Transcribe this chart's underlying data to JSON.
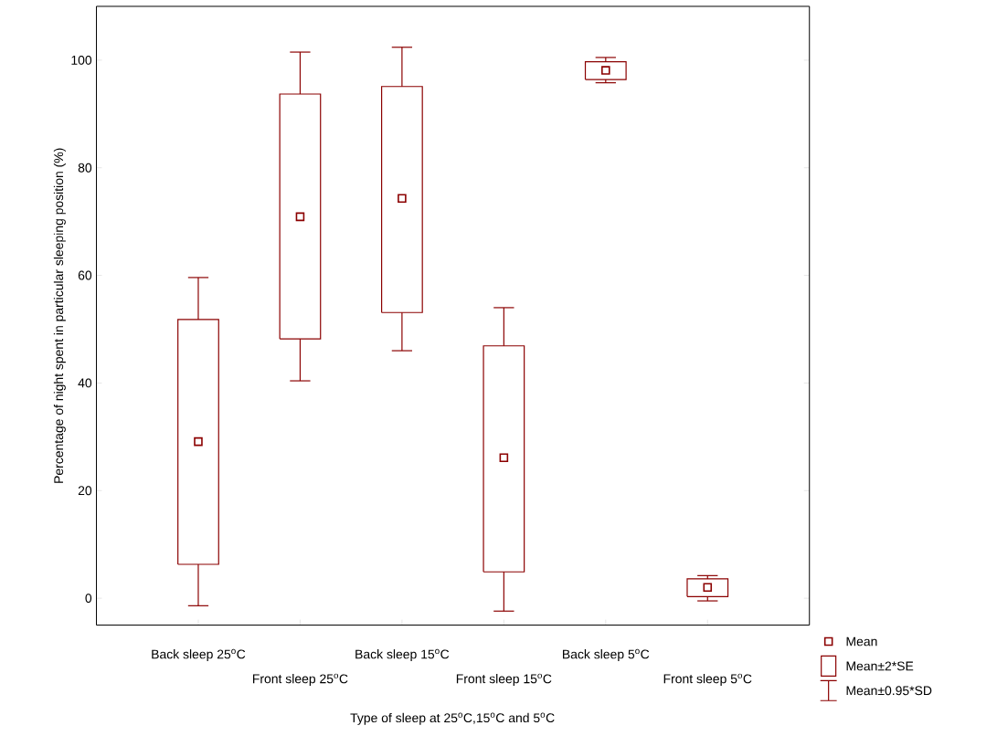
{
  "chart_data": {
    "type": "box",
    "xlabel": "Type of sleep at 25$^{o}$C,15$^{o}$C and 5$^{o}$C",
    "ylabel": "Percentage of night spent in particular sleeping position (%)",
    "categories": [
      "Back sleep 25$^{o}$C",
      "Front sleep 25$^{o}$C",
      "Back sleep 15$^{o}$C",
      "Front sleep 15$^{o}$C",
      "Back sleep 5$^{o}$C",
      "Front sleep 5$^{o}$C"
    ],
    "series": [
      {
        "color": "#8b0000",
        "boxes": [
          {
            "low": -1.4,
            "q1": 6.3,
            "median": 29.1,
            "q3": 51.8,
            "high": 59.6
          },
          {
            "low": 40.4,
            "q1": 48.2,
            "median": 70.9,
            "q3": 93.7,
            "high": 101.5
          },
          {
            "low": 46.0,
            "q1": 53.1,
            "median": 74.3,
            "q3": 95.1,
            "high": 102.4
          },
          {
            "low": -2.4,
            "q1": 4.9,
            "median": 26.1,
            "q3": 46.9,
            "high": 54.0
          },
          {
            "low": 95.8,
            "q1": 96.4,
            "median": 98.1,
            "q3": 99.7,
            "high": 100.5
          },
          {
            "low": -0.5,
            "q1": 0.3,
            "median": 2.0,
            "q3": 3.6,
            "high": 4.2
          }
        ]
      }
    ],
    "ylim": [
      -5,
      110
    ],
    "yticks": [
      0,
      20,
      40,
      60,
      80,
      100
    ],
    "annotations": [
      "Mean",
      "Mean±2*SE",
      "Mean±0.95*SD"
    ]
  }
}
